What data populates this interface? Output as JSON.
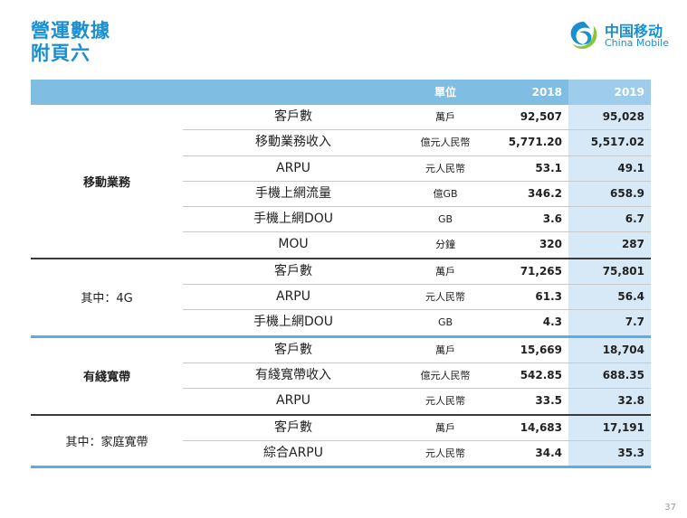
{
  "title": {
    "line1": "營運數據",
    "line2": "附頁六"
  },
  "logo": {
    "cn": "中国移动",
    "en": "China Mobile"
  },
  "table": {
    "headers": {
      "unit": "單位",
      "y2018": "2018",
      "y2019": "2019"
    },
    "sections": [
      {
        "category": "移動業務",
        "bold": true,
        "rows": [
          {
            "metric": "客戶數",
            "unit": "萬戶",
            "y2018": "92,507",
            "y2019": "95,028"
          },
          {
            "metric": "移動業務收入",
            "unit": "億元人民幣",
            "y2018": "5,771.20",
            "y2019": "5,517.02"
          },
          {
            "metric": "ARPU",
            "unit": "元人民幣",
            "y2018": "53.1",
            "y2019": "49.1"
          },
          {
            "metric": "手機上網流量",
            "unit": "億GB",
            "y2018": "346.2",
            "y2019": "658.9"
          },
          {
            "metric": "手機上網DOU",
            "unit": "GB",
            "y2018": "3.6",
            "y2019": "6.7"
          },
          {
            "metric": "MOU",
            "unit": "分鐘",
            "y2018": "320",
            "y2019": "287"
          }
        ]
      },
      {
        "category": "其中：4G",
        "bold": false,
        "rows": [
          {
            "metric": "客戶數",
            "unit": "萬戶",
            "y2018": "71,265",
            "y2019": "75,801"
          },
          {
            "metric": "ARPU",
            "unit": "元人民幣",
            "y2018": "61.3",
            "y2019": "56.4"
          },
          {
            "metric": "手機上網DOU",
            "unit": "GB",
            "y2018": "4.3",
            "y2019": "7.7"
          }
        ]
      },
      {
        "category": "有綫寬帶",
        "bold": true,
        "rows": [
          {
            "metric": "客戶數",
            "unit": "萬戶",
            "y2018": "15,669",
            "y2019": "18,704"
          },
          {
            "metric": "有綫寬帶收入",
            "unit": "億元人民幣",
            "y2018": "542.85",
            "y2019": "688.35"
          },
          {
            "metric": "ARPU",
            "unit": "元人民幣",
            "y2018": "33.5",
            "y2019": "32.8"
          }
        ]
      },
      {
        "category": "其中：家庭寬帶",
        "bold": false,
        "rows": [
          {
            "metric": "客戶數",
            "unit": "萬戶",
            "y2018": "14,683",
            "y2019": "17,191"
          },
          {
            "metric": "綜合ARPU",
            "unit": "元人民幣",
            "y2018": "34.4",
            "y2019": "35.3"
          }
        ]
      }
    ]
  },
  "page_number": "37"
}
